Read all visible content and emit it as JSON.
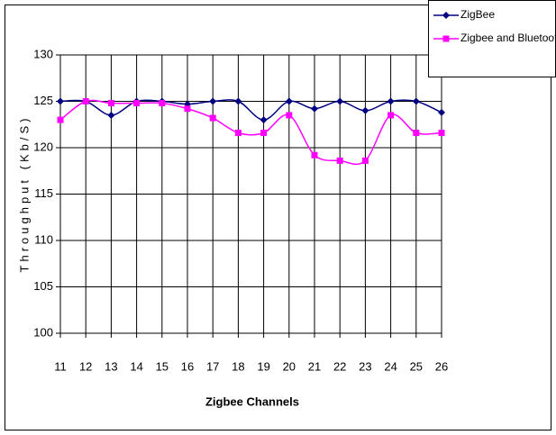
{
  "chart_data": {
    "type": "line",
    "x_label": "Zigbee Channels",
    "y_label": "Throughput (Kb/S)",
    "x": [
      11,
      12,
      13,
      14,
      15,
      16,
      17,
      18,
      19,
      20,
      21,
      22,
      23,
      24,
      25,
      26
    ],
    "xlim": [
      11,
      26
    ],
    "xticks": [
      11,
      12,
      13,
      14,
      15,
      16,
      17,
      18,
      19,
      20,
      21,
      22,
      23,
      24,
      25,
      26
    ],
    "ylim": [
      100,
      130
    ],
    "yticks": [
      100,
      105,
      110,
      115,
      120,
      125,
      130
    ],
    "grid": true,
    "legend": "top-right",
    "series": [
      {
        "name": "ZigBee",
        "color": "#000080",
        "marker": "diamond",
        "values": [
          125,
          125,
          123.5,
          125,
          125,
          124.7,
          125,
          125,
          123,
          125,
          124.2,
          125,
          124,
          125,
          125,
          123.8
        ]
      },
      {
        "name": "Zigbee and Bluetooth",
        "color": "#ff00ff",
        "marker": "square",
        "values": [
          123,
          125,
          124.8,
          124.8,
          124.8,
          124.2,
          123.2,
          121.6,
          121.6,
          123.5,
          119.2,
          118.6,
          118.6,
          123.5,
          121.6,
          121.6
        ]
      }
    ]
  }
}
